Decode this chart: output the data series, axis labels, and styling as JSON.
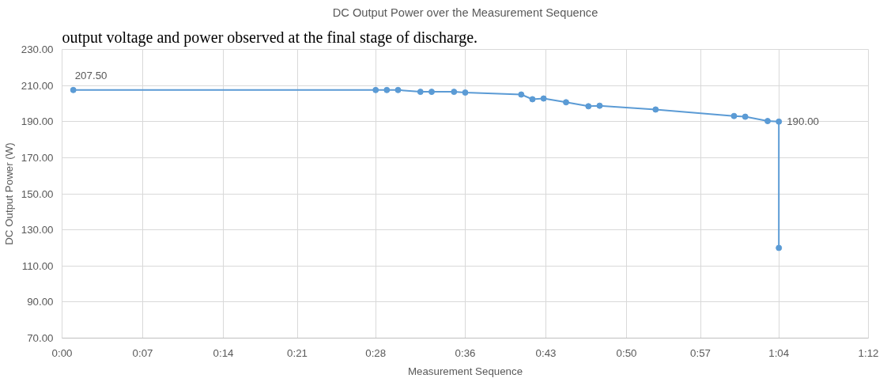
{
  "chart_data": {
    "type": "line",
    "title": "DC Output Power over the Measurement Sequence",
    "xlabel": "Measurement Sequence",
    "ylabel": "DC Output Power (W)",
    "annotations": [
      "output voltage and power observed at the final stage of discharge."
    ],
    "x": [
      0.0167,
      0.4667,
      0.4833,
      0.5,
      0.5333,
      0.55,
      0.5833,
      0.6,
      0.6833,
      0.7,
      0.7167,
      0.75,
      0.7833,
      0.8,
      0.8833,
      1.0,
      1.0167,
      1.05,
      1.0667,
      1.0667
    ],
    "series": [
      {
        "color": "#5b9bd5",
        "values": [
          207.5,
          207.5,
          207.5,
          207.5,
          206.5,
          206.5,
          206.5,
          206.1,
          205.0,
          202.4,
          202.8,
          200.7,
          198.5,
          198.8,
          196.7,
          193.1,
          192.7,
          190.3,
          190.0,
          120.0
        ],
        "value_labels": [
          "207.50",
          null,
          null,
          null,
          null,
          null,
          null,
          null,
          null,
          null,
          null,
          null,
          null,
          null,
          null,
          null,
          null,
          null,
          "190.00",
          null
        ]
      }
    ],
    "xlim": [
      0,
      1.2
    ],
    "xticks": [
      {
        "value": 0,
        "label": "0:00"
      },
      {
        "value": 0.12,
        "label": "0:07"
      },
      {
        "value": 0.24,
        "label": "0:14"
      },
      {
        "value": 0.35,
        "label": "0:21"
      },
      {
        "value": 0.4667,
        "label": "0:28"
      },
      {
        "value": 0.6,
        "label": "0:36"
      },
      {
        "value": 0.72,
        "label": "0:43"
      },
      {
        "value": 0.84,
        "label": "0:50"
      },
      {
        "value": 0.95,
        "label": "0:57"
      },
      {
        "value": 1.0667,
        "label": "1:04"
      },
      {
        "value": 1.2,
        "label": "1:12"
      }
    ],
    "ylim": [
      70,
      230
    ],
    "yticks": [
      {
        "value": 70,
        "label": "70.00"
      },
      {
        "value": 90,
        "label": "90.00"
      },
      {
        "value": 110,
        "label": "110.00"
      },
      {
        "value": 130,
        "label": "130.00"
      },
      {
        "value": 150,
        "label": "150.00"
      },
      {
        "value": 170,
        "label": "170.00"
      },
      {
        "value": 190,
        "label": "190.00"
      },
      {
        "value": 210,
        "label": "210.00"
      },
      {
        "value": 230,
        "label": "230.00"
      }
    ],
    "grid": true,
    "marker": "circle",
    "line_style": "solid"
  }
}
